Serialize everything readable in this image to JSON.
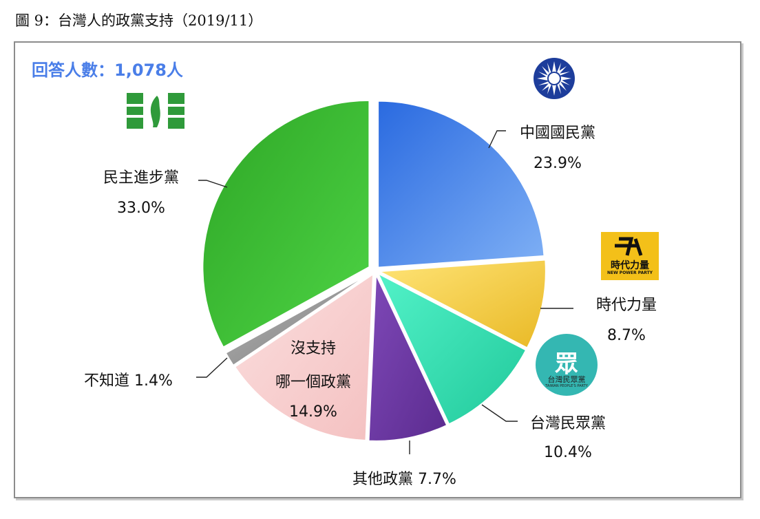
{
  "title": "圖 9：台灣人的政黨支持（2019/11）",
  "respondents": "回答人數：1,078人",
  "colors": {
    "kmt": "#3b7be6",
    "npp": "#f0c837",
    "tpp": "#35e0b5",
    "other": "#6d3aa3",
    "none": "#f7cece",
    "unknown": "#9a9a9a",
    "dpp": "#3cb832"
  },
  "logos": {
    "npp_text": "時代力量",
    "npp_sub": "NEW POWER PARTY",
    "tpp_text": "台灣民眾黨",
    "tpp_sub": "TAIWAN PEOPLE'S PARTY",
    "kmt_icon": "kmt-sun-emblem-icon",
    "dpp_icon": "dpp-flag-icon"
  },
  "chart_data": {
    "type": "pie",
    "title": "",
    "categories": [
      "中國國民黨",
      "時代力量",
      "台灣民眾黨",
      "其他政黨",
      "沒支持哪一個政黨",
      "不知道",
      "民主進步黨"
    ],
    "values": [
      23.9,
      8.7,
      10.4,
      7.7,
      14.9,
      1.4,
      33.0
    ],
    "labels": {
      "kmt_name": "中國國民黨",
      "kmt_pct": "23.9%",
      "npp_name": "時代力量",
      "npp_pct": "8.7%",
      "tpp_name": "台灣民眾黨",
      "tpp_pct": "10.4%",
      "other": "其他政黨 7.7%",
      "none_1": "沒支持",
      "none_2": "哪一個政黨",
      "none_pct": "14.9%",
      "unknown": "不知道 1.4%",
      "dpp_name": "民主進步黨",
      "dpp_pct": "33.0%"
    }
  }
}
